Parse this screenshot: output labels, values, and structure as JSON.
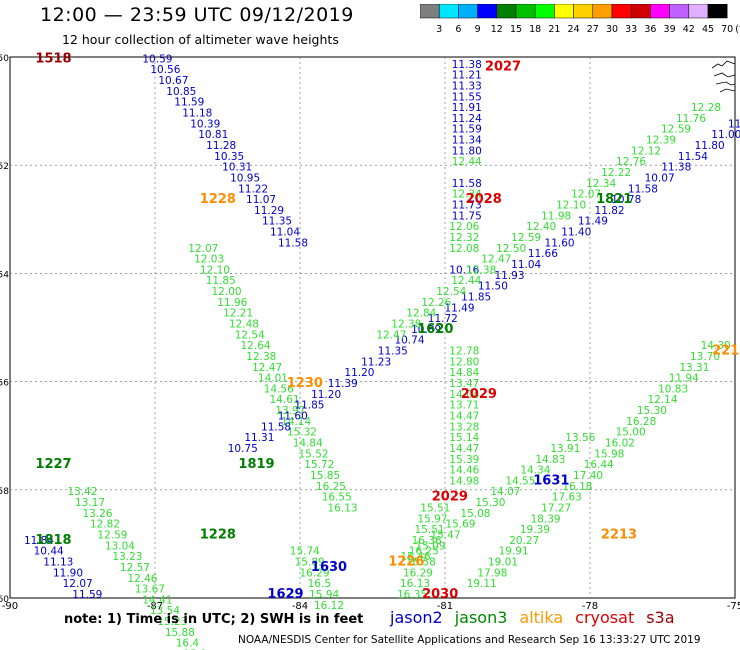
{
  "header": {
    "title": "12:00 — 23:59 UTC 09/12/2019",
    "subtitle": "12 hour collection of altimeter wave heights"
  },
  "colorbar": {
    "labels": [
      "3",
      "6",
      "9",
      "12",
      "15",
      "18",
      "21",
      "24",
      "27",
      "30",
      "33",
      "36",
      "39",
      "42",
      "45",
      "70",
      "(ft)"
    ],
    "colors": [
      "#7f7f7f",
      "#00e5ff",
      "#00b0ff",
      "#0000ff",
      "#008000",
      "#00c000",
      "#00ff00",
      "#ffff00",
      "#ffd000",
      "#ffa000",
      "#ff0000",
      "#d00000",
      "#ff00ff",
      "#c060ff",
      "#e0b0ff",
      "#000000"
    ]
  },
  "footer": {
    "note": "note:  1) Time is in UTC;  2) SWH is in feet",
    "credit": "NOAA/NESDIS Center for Satellite Applications and Research     Sep 16 13:33:27 UTC 2019"
  },
  "legend": [
    {
      "name": "jason2",
      "color": "#0000cc"
    },
    {
      "name": "jason3",
      "color": "#008800"
    },
    {
      "name": "altika",
      "color": "#ff9900"
    },
    {
      "name": "cryosat",
      "color": "#dd0000"
    },
    {
      "name": "s3a",
      "color": "#990000"
    }
  ],
  "colors": {
    "green": "#008000",
    "lightgreen": "#33dd33",
    "blue": "#0000cc",
    "orange": "#ff8c00",
    "red": "#dd0000",
    "darkred": "#990000"
  },
  "chart_data": {
    "type": "scatter",
    "xlim": [
      -90,
      -75
    ],
    "ylim": [
      -60,
      -50
    ],
    "x_ticks": [
      -90,
      -87,
      -84,
      -81,
      -78,
      -75
    ],
    "y_ticks": [
      -50,
      -52,
      -54,
      -56,
      -58,
      -60
    ],
    "grid": true,
    "pass_times": [
      {
        "label": "1518",
        "lon": -89.1,
        "lat": -50.1,
        "color": "darkred"
      },
      {
        "label": "2027",
        "lon": -79.8,
        "lat": -50.25,
        "color": "red"
      },
      {
        "label": "1228",
        "lon": -85.7,
        "lat": -52.7,
        "color": "orange"
      },
      {
        "label": "2028",
        "lon": -80.2,
        "lat": -52.7,
        "color": "red"
      },
      {
        "label": "1821",
        "lon": -77.5,
        "lat": -52.7,
        "color": "green"
      },
      {
        "label": "1620",
        "lon": -81.2,
        "lat": -55.1,
        "color": "green"
      },
      {
        "label": "1230",
        "lon": -83.9,
        "lat": -56.1,
        "color": "orange"
      },
      {
        "label": "2029",
        "lon": -80.3,
        "lat": -56.3,
        "color": "red"
      },
      {
        "label": "1227",
        "lon": -89.1,
        "lat": -57.6,
        "color": "green"
      },
      {
        "label": "1819",
        "lon": -84.9,
        "lat": -57.6,
        "color": "green"
      },
      {
        "label": "1631",
        "lon": -78.8,
        "lat": -57.9,
        "color": "blue"
      },
      {
        "label": "2029",
        "lon": -80.9,
        "lat": -58.2,
        "color": "red"
      },
      {
        "label": "1228",
        "lon": -85.7,
        "lat": -58.9,
        "color": "green"
      },
      {
        "label": "2213",
        "lon": -77.4,
        "lat": -58.9,
        "color": "orange"
      },
      {
        "label": "1818",
        "lon": -89.1,
        "lat": -59.0,
        "color": "green"
      },
      {
        "label": "1630",
        "lon": -83.4,
        "lat": -59.5,
        "color": "blue"
      },
      {
        "label": "1226",
        "lon": -81.8,
        "lat": -59.4,
        "color": "orange"
      },
      {
        "label": "1629",
        "lon": -84.3,
        "lat": -60.0,
        "color": "blue"
      },
      {
        "label": "2030",
        "lon": -81.1,
        "lat": -60.0,
        "color": "red"
      },
      {
        "label": "2213",
        "lon": -75.1,
        "lat": -55.5,
        "color": "orange"
      }
    ],
    "tracks": [
      {
        "id": "jason2_desc",
        "color": "blue",
        "start": [
          -86.95,
          -50.1
        ],
        "step": [
          0.165,
          0.2
        ],
        "values": [
          "10.59",
          "10.56",
          "10.67",
          "10.85",
          "11.59",
          "11.18",
          "10.39",
          "10.81",
          "11.28",
          "10.35",
          "10.31",
          "10.95",
          "11.22",
          "11.07",
          "11.29",
          "11.35",
          "11.04",
          "11.58"
        ]
      },
      {
        "id": "jason3_desc_a",
        "color": "lightgreen",
        "start": [
          -86.0,
          -53.6
        ],
        "step": [
          0.12,
          0.2
        ],
        "values": [
          "12.07",
          "12.03",
          "12.10",
          "11.85",
          "12.00",
          "11.96",
          "12.21",
          "12.48",
          "12.54",
          "12.64",
          "12.38",
          "12.47",
          "14.01",
          "14.56",
          "14.61",
          "13.97",
          "14.14",
          "15.32",
          "14.84",
          "15.52",
          "15.72",
          "15.85",
          "16.25",
          "16.55",
          "16.13"
        ]
      },
      {
        "id": "jason2_north",
        "color": "blue",
        "start": [
          -80.55,
          -50.2
        ],
        "step": [
          0.0,
          0.2
        ],
        "values": [
          "11.38",
          "11.21",
          "11.33",
          "11.55",
          "11.91",
          "11.24",
          "11.59",
          "11.34",
          "11.80"
        ]
      },
      {
        "id": "jason3_north",
        "color": "lightgreen",
        "start": [
          -80.55,
          -52.0
        ],
        "step": [
          0.0,
          0.2
        ],
        "values": [
          "12.44"
        ]
      },
      {
        "id": "jason2_mid",
        "color": "blue",
        "start": [
          -80.55,
          -52.4
        ],
        "step": [
          0.0,
          0.2
        ],
        "values": [
          "11.58"
        ]
      },
      {
        "id": "jason3_mid",
        "color": "lightgreen",
        "start": [
          -80.55,
          -52.6
        ],
        "step": [
          0.0,
          0.2
        ],
        "values": [
          "12.34"
        ]
      },
      {
        "id": "jason2_mid2",
        "color": "blue",
        "start": [
          -80.55,
          -52.8
        ],
        "step": [
          0.0,
          0.2
        ],
        "values": [
          "11.73",
          "11.75"
        ]
      },
      {
        "id": "jason3_mid2",
        "color": "lightgreen",
        "start": [
          -80.6,
          -53.2
        ],
        "step": [
          0.0,
          0.2
        ],
        "values": [
          "12.06",
          "12.32",
          "12.08"
        ]
      },
      {
        "id": "jason2_mid3",
        "color": "blue",
        "start": [
          -80.6,
          -54.0
        ],
        "step": [
          0.0,
          0.2
        ],
        "values": [
          "10.16"
        ]
      },
      {
        "id": "jason3_south",
        "color": "lightgreen",
        "start": [
          -80.6,
          -55.5
        ],
        "step": [
          0.0,
          0.2
        ],
        "values": [
          "12.78",
          "12.80",
          "14.84",
          "13.47",
          "14.04",
          "13.71",
          "14.47",
          "13.28",
          "15.14",
          "14.47",
          "15.39",
          "14.46",
          "14.98"
        ]
      },
      {
        "id": "jason2_asc",
        "color": "blue",
        "start": [
          -73.8,
          -50.7
        ],
        "step": [
          -0.345,
          0.2
        ],
        "values": [
          "11.28",
          "10.80",
          "12.00",
          "11.37",
          "11.00",
          "11.80",
          "11.54",
          "11.38",
          "10.07",
          "11.58",
          "10.78",
          "11.82",
          "11.49",
          "11.40",
          "11.60",
          "11.66",
          "11.04",
          "11.93",
          "11.50",
          "11.85",
          "11.49",
          "11.72",
          "10.89",
          "10.74",
          "11.35",
          "11.23",
          "11.20",
          "11.39",
          "11.20",
          "11.85",
          "11.60",
          "11.58",
          "11.31",
          "10.75"
        ]
      },
      {
        "id": "jason3_asc",
        "color": "lightgreen",
        "start": [
          -75.6,
          -51.0
        ],
        "step": [
          -0.31,
          0.2
        ],
        "values": [
          "12.28",
          "11.76",
          "12.59",
          "12.39",
          "12.12",
          "12.76",
          "12.22",
          "12.34",
          "12.07",
          "12.10",
          "11.98",
          "12.40",
          "12.59",
          "12.50",
          "12.47",
          "12.38",
          "12.44",
          "12.54",
          "12.26",
          "12.84",
          "12.38",
          "12.47"
        ]
      },
      {
        "id": "jason3_lower",
        "color": "lightgreen",
        "start": [
          -88.5,
          -58.1
        ],
        "step": [
          0.155,
          0.2
        ],
        "values": [
          "13.42",
          "13.17",
          "13.26",
          "12.82",
          "12.59",
          "13.04",
          "13.23",
          "12.57",
          "12.46",
          "13.67",
          "14.41",
          "13.54",
          "15.23",
          "15.88",
          "16.4",
          "15.8"
        ]
      },
      {
        "id": "jason2_lower",
        "color": "blue",
        "start": [
          -89.4,
          -59.0
        ],
        "step": [
          0.2,
          0.2
        ],
        "values": [
          "11.84",
          "10.44",
          "11.13",
          "11.90",
          "12.07",
          "11.59"
        ]
      },
      {
        "id": "jason3_se",
        "color": "lightgreen",
        "start": [
          -75.4,
          -55.4
        ],
        "step": [
          -0.22,
          0.2
        ],
        "values": [
          "14.30",
          "13.70",
          "13.31",
          "11.94",
          "10.83",
          "12.14",
          "15.30",
          "16.28",
          "15.00",
          "16.02",
          "15.98",
          "16.44",
          "17.40",
          "16.18",
          "17.63",
          "17.27",
          "18.39",
          "19.39",
          "20.27",
          "19.91",
          "19.01",
          "17.98",
          "19.11"
        ]
      },
      {
        "id": "jason3_diag_se",
        "color": "lightgreen",
        "start": [
          -78.2,
          -57.1
        ],
        "step": [
          -0.31,
          0.2
        ],
        "values": [
          "13.56",
          "13.91",
          "14.83",
          "14.34",
          "14.55",
          "14.07",
          "15.30",
          "15.08",
          "15.69",
          "15.47",
          "15.09",
          "15.46"
        ]
      },
      {
        "id": "jason3_se_low",
        "color": "lightgreen",
        "start": [
          -81.2,
          -58.4
        ],
        "step": [
          -0.06,
          0.2
        ],
        "values": [
          "15.51",
          "15.97",
          "15.51",
          "16.36",
          "16.25",
          "16.58",
          "16.29",
          "16.13",
          "16.35"
        ]
      },
      {
        "id": "jason3_bottom",
        "color": "lightgreen",
        "start": [
          -83.9,
          -59.2
        ],
        "step": [
          0.1,
          0.2
        ],
        "values": [
          "15.74",
          "15.89",
          "16.29",
          "16.5",
          "15.94",
          "16.12"
        ]
      }
    ]
  }
}
